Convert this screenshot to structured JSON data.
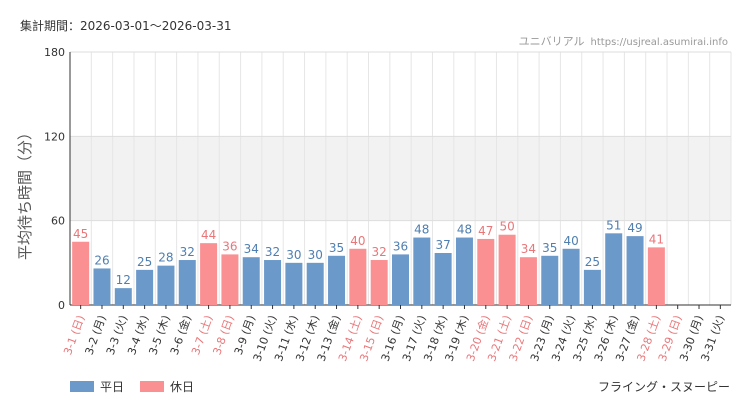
{
  "header": {
    "period_label": "集計期間：2026-03-01〜2026-03-31",
    "site_name": "ユニバリアル",
    "site_url": "https://usjreal.asumirai.info"
  },
  "legend": {
    "weekday": "平日",
    "holiday": "休日"
  },
  "footer": {
    "attraction": "フライング・スヌーピー"
  },
  "colors": {
    "weekday": "#6b9aca",
    "holiday": "#fa9092",
    "weekday_text": "#4f7fb0",
    "holiday_text": "#e9777a"
  },
  "chart_data": {
    "type": "bar",
    "title": "",
    "ylabel": "平均待ち時間（分）",
    "xlabel": "",
    "ylim": [
      0,
      180
    ],
    "yticks": [
      0,
      60,
      120,
      180
    ],
    "shaded_band": [
      60,
      120
    ],
    "categories": [
      "3-1 (日)",
      "3-2 (月)",
      "3-3 (火)",
      "3-4 (水)",
      "3-5 (木)",
      "3-6 (金)",
      "3-7 (土)",
      "3-8 (日)",
      "3-9 (月)",
      "3-10 (火)",
      "3-11 (水)",
      "3-12 (木)",
      "3-13 (金)",
      "3-14 (土)",
      "3-15 (日)",
      "3-16 (月)",
      "3-17 (火)",
      "3-18 (水)",
      "3-19 (木)",
      "3-20 (金)",
      "3-21 (土)",
      "3-22 (日)",
      "3-23 (月)",
      "3-24 (火)",
      "3-25 (水)",
      "3-26 (木)",
      "3-27 (金)",
      "3-28 (土)",
      "3-29 (日)",
      "3-30 (月)",
      "3-31 (火)"
    ],
    "day_type": [
      "holiday",
      "weekday",
      "weekday",
      "weekday",
      "weekday",
      "weekday",
      "holiday",
      "holiday",
      "weekday",
      "weekday",
      "weekday",
      "weekday",
      "weekday",
      "holiday",
      "holiday",
      "weekday",
      "weekday",
      "weekday",
      "weekday",
      "holiday",
      "holiday",
      "holiday",
      "weekday",
      "weekday",
      "weekday",
      "weekday",
      "weekday",
      "holiday",
      "holiday",
      "weekday",
      "weekday"
    ],
    "series": [
      {
        "name": "平均待ち時間",
        "values": [
          45,
          26,
          12,
          25,
          28,
          32,
          44,
          36,
          34,
          32,
          30,
          30,
          35,
          40,
          32,
          36,
          48,
          37,
          48,
          47,
          50,
          34,
          35,
          40,
          25,
          51,
          49,
          41,
          null,
          null,
          null
        ]
      }
    ]
  }
}
